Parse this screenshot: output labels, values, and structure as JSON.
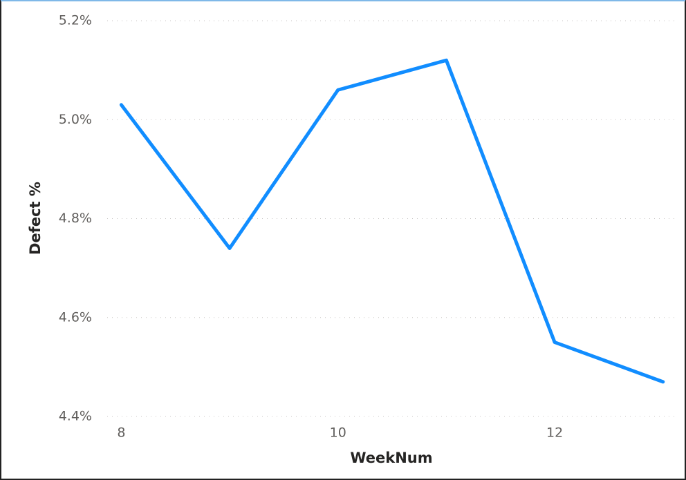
{
  "chart_data": {
    "type": "line",
    "x_label": "WeekNum",
    "y_label": "Defect %",
    "x": [
      8,
      9,
      10,
      11,
      12,
      13
    ],
    "series": [
      {
        "name": "Defect %",
        "color": "#118dff",
        "values": [
          5.03,
          4.74,
          5.06,
          5.12,
          4.55,
          4.47
        ]
      }
    ],
    "xlim": [
      7.87,
      13.11
    ],
    "xticks": [
      8,
      10,
      12
    ],
    "ylim": [
      4.4,
      5.2
    ],
    "yticks": [
      {
        "value": 4.4,
        "label": "4.4%"
      },
      {
        "value": 4.6,
        "label": "4.6%"
      },
      {
        "value": 4.8,
        "label": "4.8%"
      },
      {
        "value": 5.0,
        "label": "5.0%"
      },
      {
        "value": 5.2,
        "label": "5.2%"
      }
    ],
    "grid": true
  }
}
